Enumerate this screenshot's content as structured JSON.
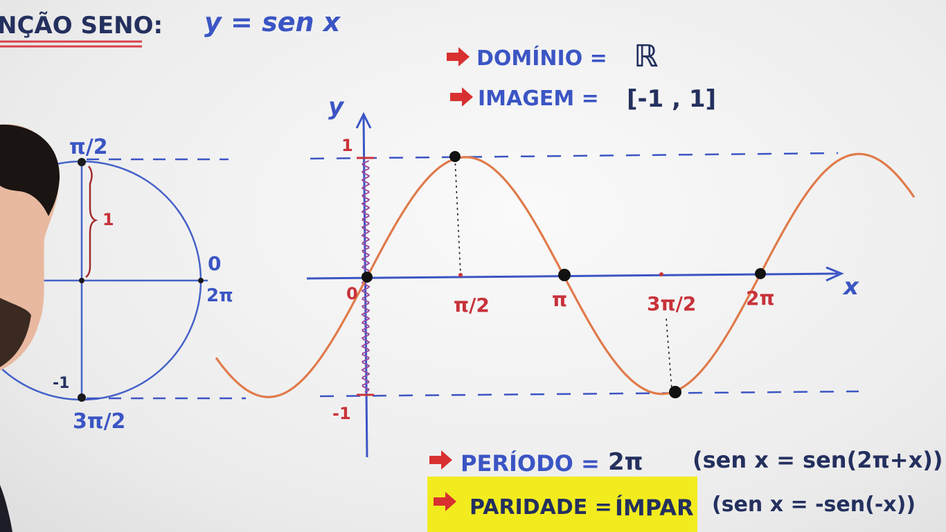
{
  "header": {
    "title": "NÇÃO SENO:",
    "formula": "y = sen x"
  },
  "properties": {
    "domain_label": "DOMÍNIO =",
    "domain_value": "ℝ",
    "image_label": "IMAGEM =",
    "image_value": "[-1 , 1]",
    "period_label": "PERÍODO =",
    "period_value": "2π",
    "period_note": "(sen x = sen(2π+x))",
    "parity_label": "PARIDADE =",
    "parity_value": "ÍMPAR",
    "parity_note": "(sen x = -sen(-x))"
  },
  "circle": {
    "top": "π/2",
    "right_top": "0",
    "right_bottom": "2π",
    "bottom_left": "-1",
    "bottom": "3π/2",
    "radius_label": "1"
  },
  "graph": {
    "y_axis": "y",
    "x_axis": "x",
    "y_max": "1",
    "y_min": "-1",
    "ticks": [
      "0",
      "π/2",
      "π",
      "3π/2",
      "2π"
    ]
  },
  "colors": {
    "blue_ink": "#3b55c4",
    "red_ink": "#c8323a",
    "curve": "#e07a4a",
    "highlight": "#f2ec1f"
  }
}
